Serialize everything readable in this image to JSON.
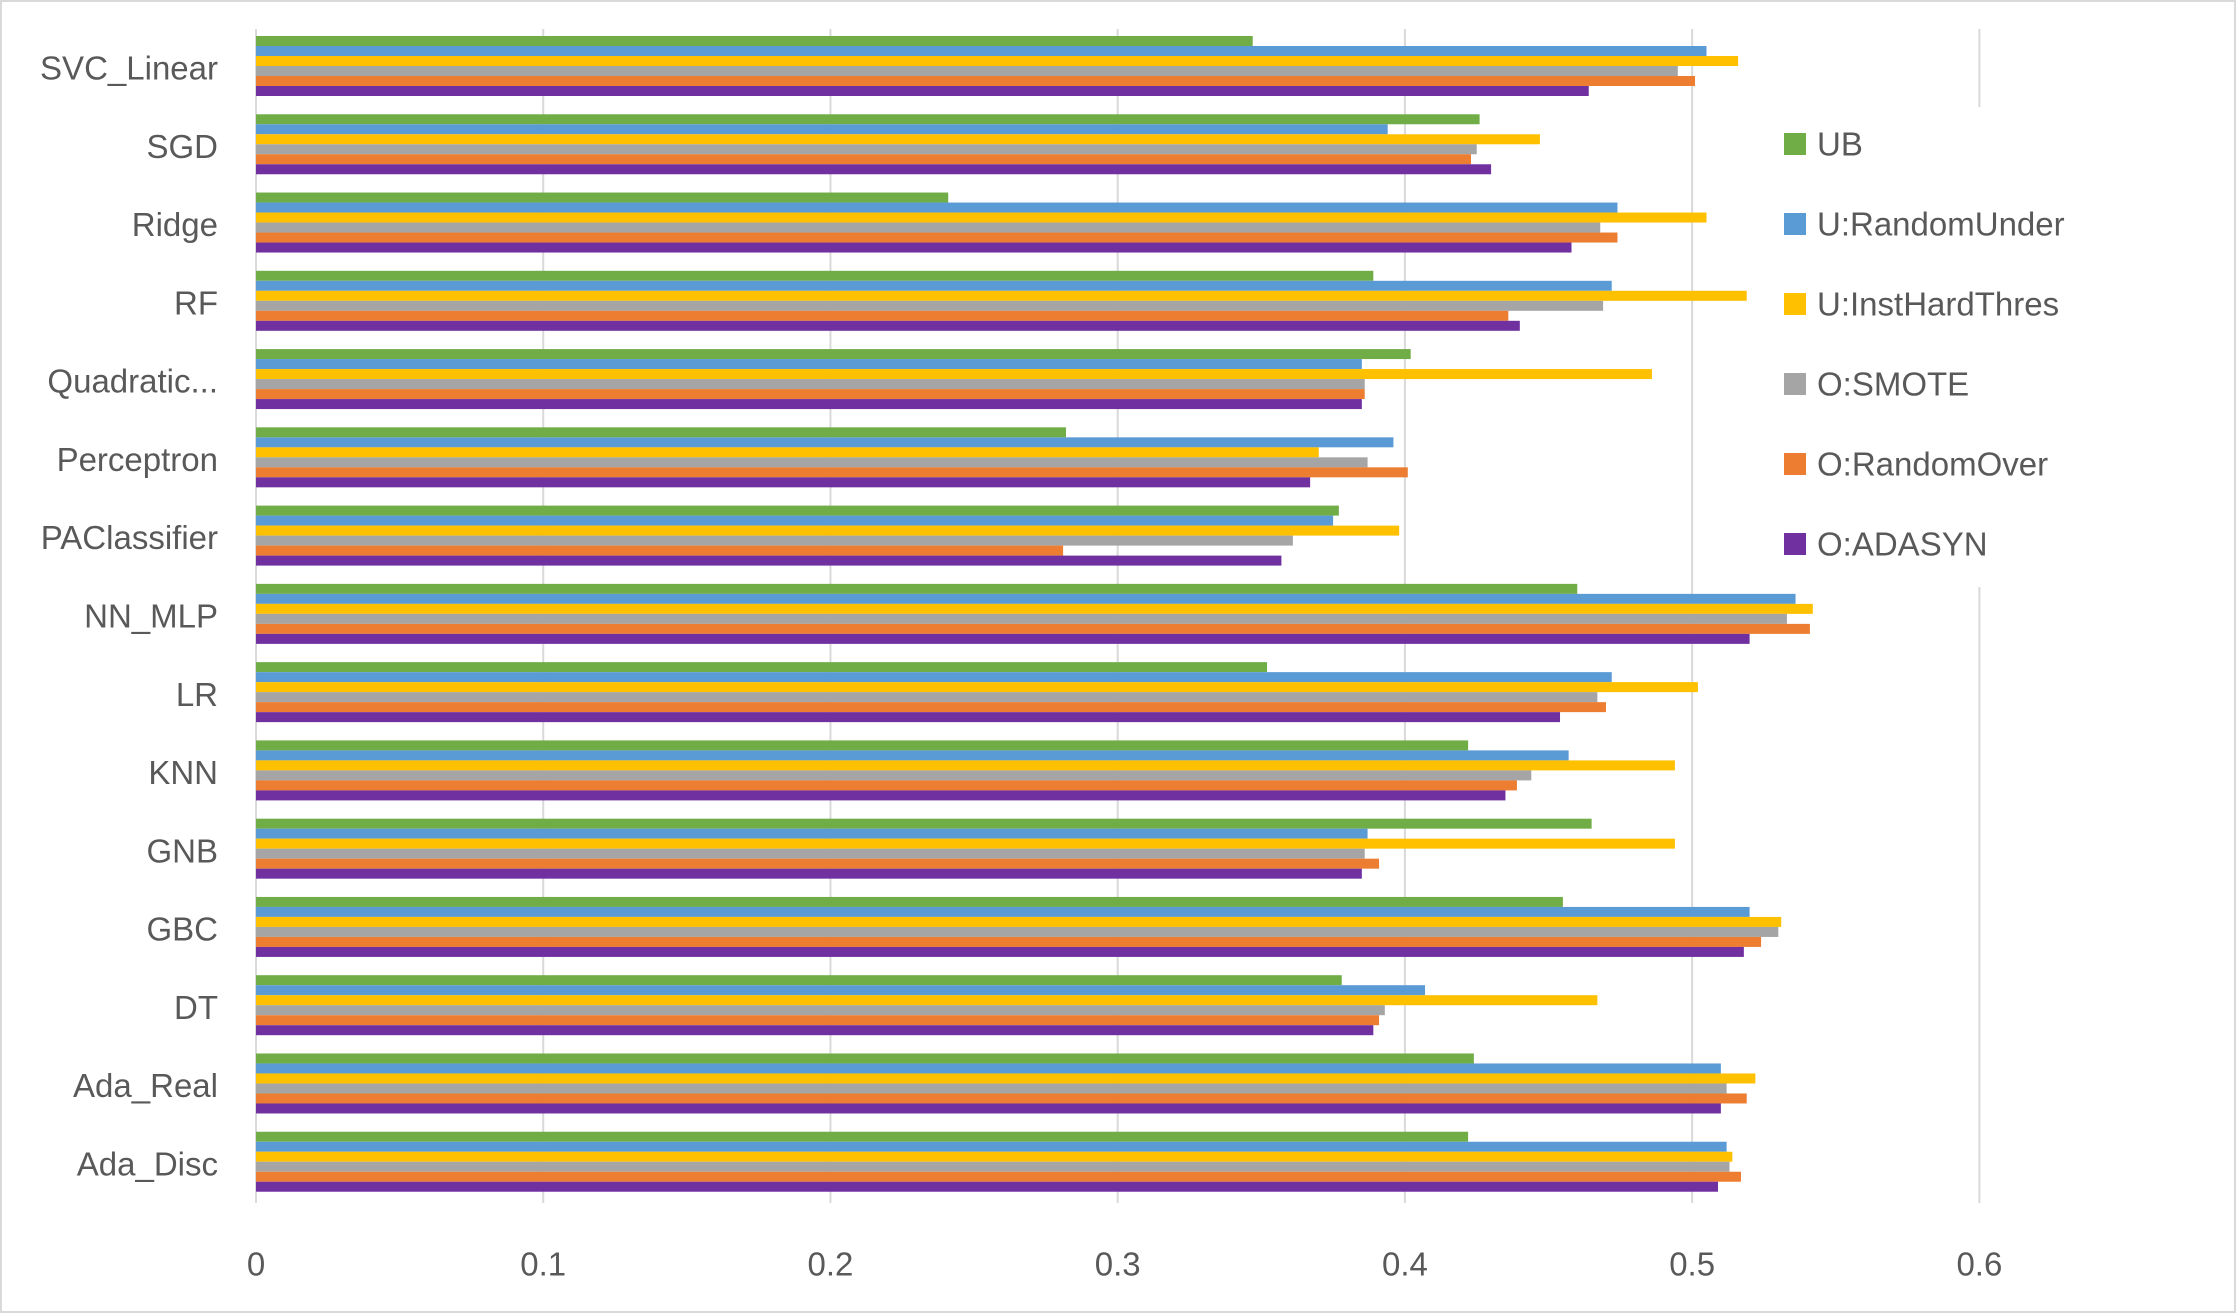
{
  "chart_data": {
    "type": "bar",
    "orientation": "horizontal",
    "title": "",
    "xlabel": "",
    "ylabel": "",
    "xlim": [
      0,
      0.6
    ],
    "x_ticks": [
      "0",
      "0.1",
      "0.2",
      "0.3",
      "0.4",
      "0.5",
      "0.6"
    ],
    "x_tick_values": [
      0,
      0.1,
      0.2,
      0.3,
      0.4,
      0.5,
      0.6
    ],
    "grid": true,
    "legend_position": "right",
    "categories": [
      "SVC_Linear",
      "SGD",
      "Ridge",
      "RF",
      "Quadratic...",
      "Perceptron",
      "PAClassifier",
      "NN_MLP",
      "LR",
      "KNN",
      "GNB",
      "GBC",
      "DT",
      "Ada_Real",
      "Ada_Disc"
    ],
    "series": [
      {
        "name": "UB",
        "color": "#70ad47",
        "values": [
          0.347,
          0.426,
          0.241,
          0.389,
          0.402,
          0.282,
          0.377,
          0.46,
          0.352,
          0.422,
          0.465,
          0.455,
          0.378,
          0.424,
          0.422
        ]
      },
      {
        "name": "U:RandomUnder",
        "color": "#5b9bd5",
        "values": [
          0.505,
          0.394,
          0.474,
          0.472,
          0.385,
          0.396,
          0.375,
          0.536,
          0.472,
          0.457,
          0.387,
          0.52,
          0.407,
          0.51,
          0.512
        ]
      },
      {
        "name": "U:InstHardThres",
        "color": "#ffc000",
        "values": [
          0.516,
          0.447,
          0.505,
          0.519,
          0.486,
          0.37,
          0.398,
          0.542,
          0.502,
          0.494,
          0.494,
          0.531,
          0.467,
          0.522,
          0.514
        ]
      },
      {
        "name": "O:SMOTE",
        "color": "#a5a5a5",
        "values": [
          0.495,
          0.425,
          0.468,
          0.469,
          0.386,
          0.387,
          0.361,
          0.533,
          0.467,
          0.444,
          0.386,
          0.53,
          0.393,
          0.512,
          0.513
        ]
      },
      {
        "name": "O:RandomOver",
        "color": "#ed7d31",
        "values": [
          0.501,
          0.423,
          0.474,
          0.436,
          0.386,
          0.401,
          0.281,
          0.541,
          0.47,
          0.439,
          0.391,
          0.524,
          0.391,
          0.519,
          0.517
        ]
      },
      {
        "name": "O:ADASYN",
        "color": "#7030a0",
        "values": [
          0.464,
          0.43,
          0.458,
          0.44,
          0.385,
          0.367,
          0.357,
          0.52,
          0.454,
          0.435,
          0.385,
          0.518,
          0.389,
          0.51,
          0.509
        ]
      }
    ]
  }
}
